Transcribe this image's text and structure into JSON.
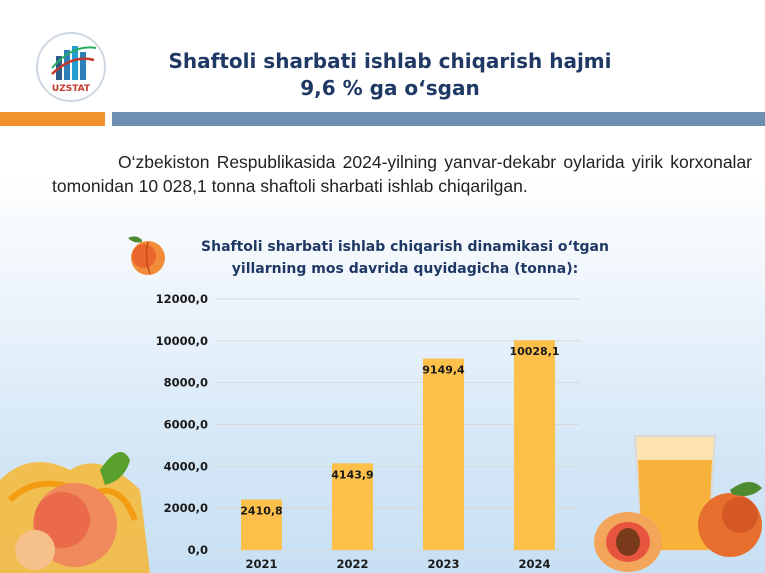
{
  "header": {
    "logo_text": "UZSTAT",
    "title_line1": "Shaftoli sharbati ishlab chiqarish hajmi",
    "title_line2": "9,6 % ga o‘sgan"
  },
  "intro_text": "O‘zbekiston Respublikasida 2024-yilning yanvar-dekabr oylarida yirik korxonalar tomonidan 10 028,1 tonna shaftoli sharbati ishlab chiqarilgan.",
  "colors": {
    "bar": "#fcc04b",
    "orange_band": "#f0932b",
    "blue_band": "#6d8fb0",
    "title": "#1f3864"
  },
  "icons": [
    "uzstat-logo-icon",
    "peach-icon",
    "peach-juice-splash-icon",
    "juice-glass-icon",
    "peach-half-icon"
  ],
  "chart_data": {
    "type": "bar",
    "title_line1": "Shaftoli sharbati ishlab chiqarish dinamikasi o‘tgan",
    "title_line2": "yillarning mos davrida quyidagicha (tonna):",
    "categories": [
      "2021",
      "2022",
      "2023",
      "2024"
    ],
    "values": [
      2410.8,
      4143.9,
      9149.4,
      10028.1
    ],
    "value_labels": [
      "2410,8",
      "4143,9",
      "9149,4",
      "10028,1"
    ],
    "y_ticks": [
      0,
      2000,
      4000,
      6000,
      8000,
      10000,
      12000
    ],
    "y_tick_labels": [
      "0,0",
      "2000,0",
      "4000,0",
      "6000,0",
      "8000,0",
      "10000,0",
      "12000,0"
    ],
    "ylim": [
      0,
      12000
    ],
    "grid": true,
    "legend": "none"
  }
}
